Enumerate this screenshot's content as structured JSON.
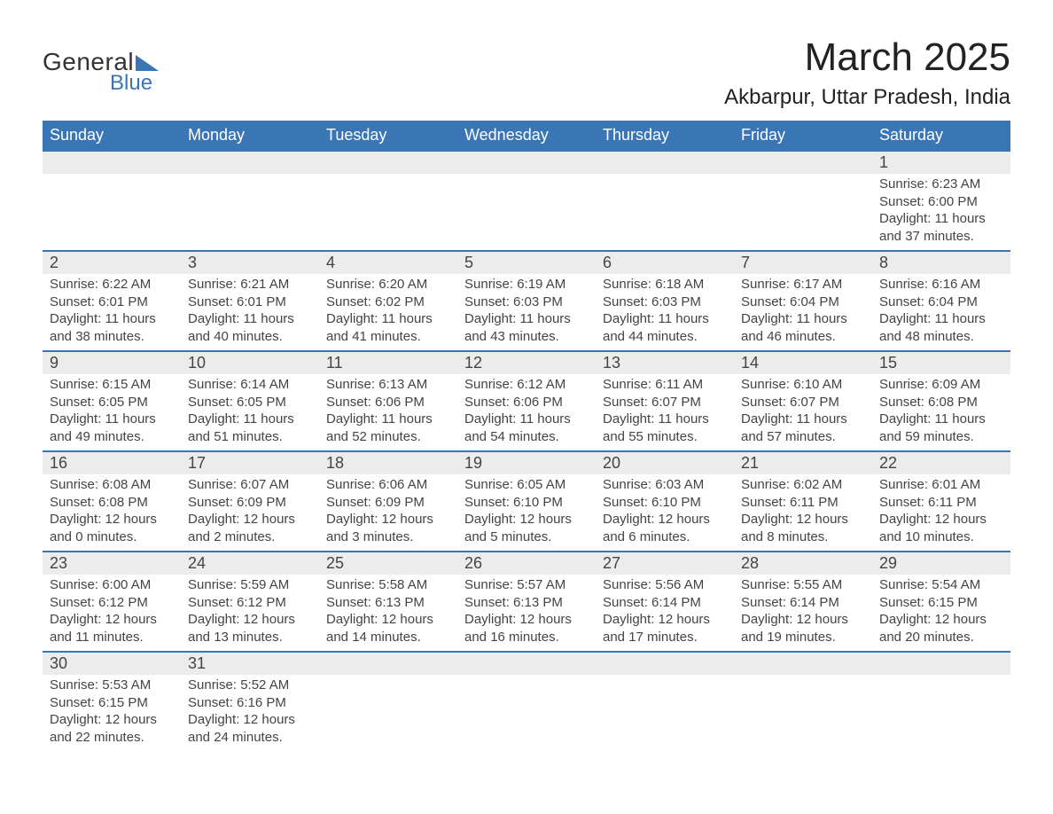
{
  "logo": {
    "line1": "General",
    "line2": "Blue"
  },
  "title": "March 2025",
  "location": "Akbarpur, Uttar Pradesh, India",
  "colors": {
    "header_bg": "#3a76b5",
    "header_text": "#ffffff",
    "daynum_bg": "#ececec",
    "row_border": "#3a76b5",
    "body_text": "#444444",
    "logo_accent": "#3a76b5"
  },
  "typography": {
    "title_fontsize": 44,
    "location_fontsize": 24,
    "dayhead_fontsize": 18,
    "cell_fontsize": 15
  },
  "dayHeaders": [
    "Sunday",
    "Monday",
    "Tuesday",
    "Wednesday",
    "Thursday",
    "Friday",
    "Saturday"
  ],
  "weeks": [
    [
      null,
      null,
      null,
      null,
      null,
      null,
      {
        "n": "1",
        "sr": "Sunrise: 6:23 AM",
        "ss": "Sunset: 6:00 PM",
        "d1": "Daylight: 11 hours",
        "d2": "and 37 minutes."
      }
    ],
    [
      {
        "n": "2",
        "sr": "Sunrise: 6:22 AM",
        "ss": "Sunset: 6:01 PM",
        "d1": "Daylight: 11 hours",
        "d2": "and 38 minutes."
      },
      {
        "n": "3",
        "sr": "Sunrise: 6:21 AM",
        "ss": "Sunset: 6:01 PM",
        "d1": "Daylight: 11 hours",
        "d2": "and 40 minutes."
      },
      {
        "n": "4",
        "sr": "Sunrise: 6:20 AM",
        "ss": "Sunset: 6:02 PM",
        "d1": "Daylight: 11 hours",
        "d2": "and 41 minutes."
      },
      {
        "n": "5",
        "sr": "Sunrise: 6:19 AM",
        "ss": "Sunset: 6:03 PM",
        "d1": "Daylight: 11 hours",
        "d2": "and 43 minutes."
      },
      {
        "n": "6",
        "sr": "Sunrise: 6:18 AM",
        "ss": "Sunset: 6:03 PM",
        "d1": "Daylight: 11 hours",
        "d2": "and 44 minutes."
      },
      {
        "n": "7",
        "sr": "Sunrise: 6:17 AM",
        "ss": "Sunset: 6:04 PM",
        "d1": "Daylight: 11 hours",
        "d2": "and 46 minutes."
      },
      {
        "n": "8",
        "sr": "Sunrise: 6:16 AM",
        "ss": "Sunset: 6:04 PM",
        "d1": "Daylight: 11 hours",
        "d2": "and 48 minutes."
      }
    ],
    [
      {
        "n": "9",
        "sr": "Sunrise: 6:15 AM",
        "ss": "Sunset: 6:05 PM",
        "d1": "Daylight: 11 hours",
        "d2": "and 49 minutes."
      },
      {
        "n": "10",
        "sr": "Sunrise: 6:14 AM",
        "ss": "Sunset: 6:05 PM",
        "d1": "Daylight: 11 hours",
        "d2": "and 51 minutes."
      },
      {
        "n": "11",
        "sr": "Sunrise: 6:13 AM",
        "ss": "Sunset: 6:06 PM",
        "d1": "Daylight: 11 hours",
        "d2": "and 52 minutes."
      },
      {
        "n": "12",
        "sr": "Sunrise: 6:12 AM",
        "ss": "Sunset: 6:06 PM",
        "d1": "Daylight: 11 hours",
        "d2": "and 54 minutes."
      },
      {
        "n": "13",
        "sr": "Sunrise: 6:11 AM",
        "ss": "Sunset: 6:07 PM",
        "d1": "Daylight: 11 hours",
        "d2": "and 55 minutes."
      },
      {
        "n": "14",
        "sr": "Sunrise: 6:10 AM",
        "ss": "Sunset: 6:07 PM",
        "d1": "Daylight: 11 hours",
        "d2": "and 57 minutes."
      },
      {
        "n": "15",
        "sr": "Sunrise: 6:09 AM",
        "ss": "Sunset: 6:08 PM",
        "d1": "Daylight: 11 hours",
        "d2": "and 59 minutes."
      }
    ],
    [
      {
        "n": "16",
        "sr": "Sunrise: 6:08 AM",
        "ss": "Sunset: 6:08 PM",
        "d1": "Daylight: 12 hours",
        "d2": "and 0 minutes."
      },
      {
        "n": "17",
        "sr": "Sunrise: 6:07 AM",
        "ss": "Sunset: 6:09 PM",
        "d1": "Daylight: 12 hours",
        "d2": "and 2 minutes."
      },
      {
        "n": "18",
        "sr": "Sunrise: 6:06 AM",
        "ss": "Sunset: 6:09 PM",
        "d1": "Daylight: 12 hours",
        "d2": "and 3 minutes."
      },
      {
        "n": "19",
        "sr": "Sunrise: 6:05 AM",
        "ss": "Sunset: 6:10 PM",
        "d1": "Daylight: 12 hours",
        "d2": "and 5 minutes."
      },
      {
        "n": "20",
        "sr": "Sunrise: 6:03 AM",
        "ss": "Sunset: 6:10 PM",
        "d1": "Daylight: 12 hours",
        "d2": "and 6 minutes."
      },
      {
        "n": "21",
        "sr": "Sunrise: 6:02 AM",
        "ss": "Sunset: 6:11 PM",
        "d1": "Daylight: 12 hours",
        "d2": "and 8 minutes."
      },
      {
        "n": "22",
        "sr": "Sunrise: 6:01 AM",
        "ss": "Sunset: 6:11 PM",
        "d1": "Daylight: 12 hours",
        "d2": "and 10 minutes."
      }
    ],
    [
      {
        "n": "23",
        "sr": "Sunrise: 6:00 AM",
        "ss": "Sunset: 6:12 PM",
        "d1": "Daylight: 12 hours",
        "d2": "and 11 minutes."
      },
      {
        "n": "24",
        "sr": "Sunrise: 5:59 AM",
        "ss": "Sunset: 6:12 PM",
        "d1": "Daylight: 12 hours",
        "d2": "and 13 minutes."
      },
      {
        "n": "25",
        "sr": "Sunrise: 5:58 AM",
        "ss": "Sunset: 6:13 PM",
        "d1": "Daylight: 12 hours",
        "d2": "and 14 minutes."
      },
      {
        "n": "26",
        "sr": "Sunrise: 5:57 AM",
        "ss": "Sunset: 6:13 PM",
        "d1": "Daylight: 12 hours",
        "d2": "and 16 minutes."
      },
      {
        "n": "27",
        "sr": "Sunrise: 5:56 AM",
        "ss": "Sunset: 6:14 PM",
        "d1": "Daylight: 12 hours",
        "d2": "and 17 minutes."
      },
      {
        "n": "28",
        "sr": "Sunrise: 5:55 AM",
        "ss": "Sunset: 6:14 PM",
        "d1": "Daylight: 12 hours",
        "d2": "and 19 minutes."
      },
      {
        "n": "29",
        "sr": "Sunrise: 5:54 AM",
        "ss": "Sunset: 6:15 PM",
        "d1": "Daylight: 12 hours",
        "d2": "and 20 minutes."
      }
    ],
    [
      {
        "n": "30",
        "sr": "Sunrise: 5:53 AM",
        "ss": "Sunset: 6:15 PM",
        "d1": "Daylight: 12 hours",
        "d2": "and 22 minutes."
      },
      {
        "n": "31",
        "sr": "Sunrise: 5:52 AM",
        "ss": "Sunset: 6:16 PM",
        "d1": "Daylight: 12 hours",
        "d2": "and 24 minutes."
      },
      null,
      null,
      null,
      null,
      null
    ]
  ]
}
